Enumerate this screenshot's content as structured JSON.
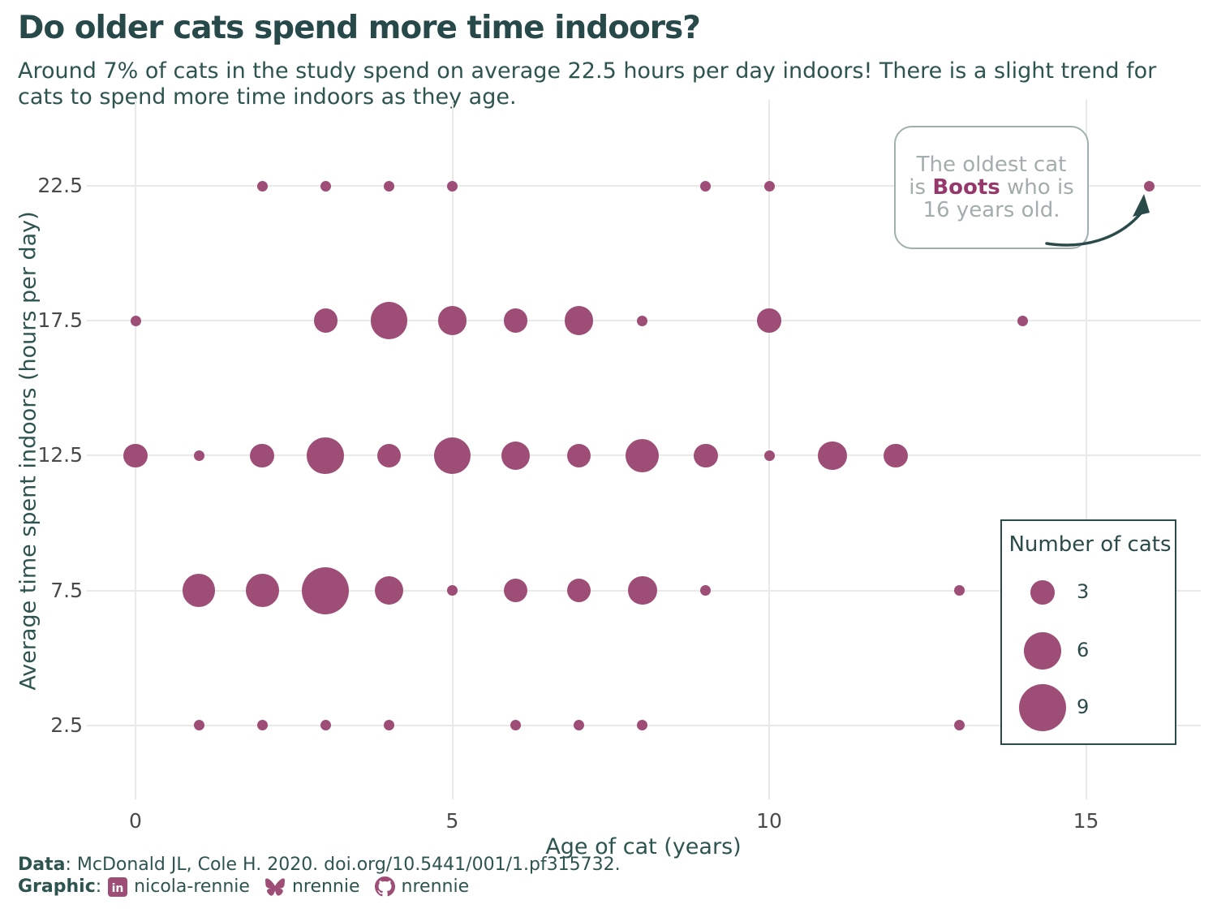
{
  "title": "Do older cats spend more time indoors?",
  "subtitle": "Around 7% of cats in the study spend on average 22.5 hours per day indoors! There is a slight trend for cats to spend more time indoors as they age.",
  "colors": {
    "accent_teal": "#2b4b4a",
    "bubble_magenta": "#9e4d76",
    "gridline": "#e9e9e9",
    "annotation_gray": "#a3adad",
    "highlight_magenta": "#96386b"
  },
  "chart_data": {
    "type": "scatter",
    "title": "Do older cats spend more time indoors?",
    "xlabel": "Age of cat (years)",
    "ylabel": "Average time spent indoors (hours per day)",
    "size_legend_title": "Number of cats",
    "x_ticks": [
      0,
      5,
      10,
      15
    ],
    "y_ticks": [
      22.5,
      17.5,
      12.5,
      7.5,
      2.5
    ],
    "xlim": [
      -0.8,
      17
    ],
    "ylim": [
      0.5,
      25.7
    ],
    "grid": true,
    "points": [
      {
        "age": 2,
        "hours": 22.5,
        "cats": 1
      },
      {
        "age": 3,
        "hours": 22.5,
        "cats": 1
      },
      {
        "age": 4,
        "hours": 22.5,
        "cats": 1
      },
      {
        "age": 5,
        "hours": 22.5,
        "cats": 1
      },
      {
        "age": 9,
        "hours": 22.5,
        "cats": 1
      },
      {
        "age": 10,
        "hours": 22.5,
        "cats": 1
      },
      {
        "age": 16,
        "hours": 22.5,
        "cats": 1
      },
      {
        "age": 0,
        "hours": 17.5,
        "cats": 1
      },
      {
        "age": 3,
        "hours": 17.5,
        "cats": 3
      },
      {
        "age": 4,
        "hours": 17.5,
        "cats": 6
      },
      {
        "age": 5,
        "hours": 17.5,
        "cats": 4
      },
      {
        "age": 6,
        "hours": 17.5,
        "cats": 3
      },
      {
        "age": 7,
        "hours": 17.5,
        "cats": 4
      },
      {
        "age": 8,
        "hours": 17.5,
        "cats": 1
      },
      {
        "age": 10,
        "hours": 17.5,
        "cats": 3
      },
      {
        "age": 14,
        "hours": 17.5,
        "cats": 1
      },
      {
        "age": 0,
        "hours": 12.5,
        "cats": 3
      },
      {
        "age": 1,
        "hours": 12.5,
        "cats": 1
      },
      {
        "age": 2,
        "hours": 12.5,
        "cats": 3
      },
      {
        "age": 3,
        "hours": 12.5,
        "cats": 6
      },
      {
        "age": 4,
        "hours": 12.5,
        "cats": 3
      },
      {
        "age": 5,
        "hours": 12.5,
        "cats": 6
      },
      {
        "age": 6,
        "hours": 12.5,
        "cats": 4
      },
      {
        "age": 7,
        "hours": 12.5,
        "cats": 3
      },
      {
        "age": 8,
        "hours": 12.5,
        "cats": 5
      },
      {
        "age": 9,
        "hours": 12.5,
        "cats": 3
      },
      {
        "age": 10,
        "hours": 12.5,
        "cats": 1
      },
      {
        "age": 11,
        "hours": 12.5,
        "cats": 4
      },
      {
        "age": 12,
        "hours": 12.5,
        "cats": 3
      },
      {
        "age": 1,
        "hours": 7.5,
        "cats": 5
      },
      {
        "age": 2,
        "hours": 7.5,
        "cats": 5
      },
      {
        "age": 3,
        "hours": 7.5,
        "cats": 9
      },
      {
        "age": 4,
        "hours": 7.5,
        "cats": 4
      },
      {
        "age": 5,
        "hours": 7.5,
        "cats": 1
      },
      {
        "age": 6,
        "hours": 7.5,
        "cats": 3
      },
      {
        "age": 7,
        "hours": 7.5,
        "cats": 3
      },
      {
        "age": 8,
        "hours": 7.5,
        "cats": 4
      },
      {
        "age": 9,
        "hours": 7.5,
        "cats": 1
      },
      {
        "age": 13,
        "hours": 7.5,
        "cats": 1
      },
      {
        "age": 1,
        "hours": 2.5,
        "cats": 1
      },
      {
        "age": 2,
        "hours": 2.5,
        "cats": 1
      },
      {
        "age": 3,
        "hours": 2.5,
        "cats": 1
      },
      {
        "age": 4,
        "hours": 2.5,
        "cats": 1
      },
      {
        "age": 6,
        "hours": 2.5,
        "cats": 1
      },
      {
        "age": 7,
        "hours": 2.5,
        "cats": 1
      },
      {
        "age": 8,
        "hours": 2.5,
        "cats": 1
      },
      {
        "age": 13,
        "hours": 2.5,
        "cats": 1
      }
    ]
  },
  "annotation": {
    "text_before": "The oldest cat is ",
    "highlight": "Boots",
    "text_after": " who is 16 years old."
  },
  "legend": {
    "title": "Number of cats",
    "sizes": [
      3,
      6,
      9
    ]
  },
  "footer": {
    "data_label": "Data",
    "data_text": ": McDonald JL, Cole H. 2020. doi.org/10.5441/001/1.pf315732.",
    "graphic_label": "Graphic",
    "graphic_colon": ":",
    "linkedin_user": "nicola-rennie",
    "bluesky_user": "nrennie",
    "github_user": "nrennie"
  }
}
